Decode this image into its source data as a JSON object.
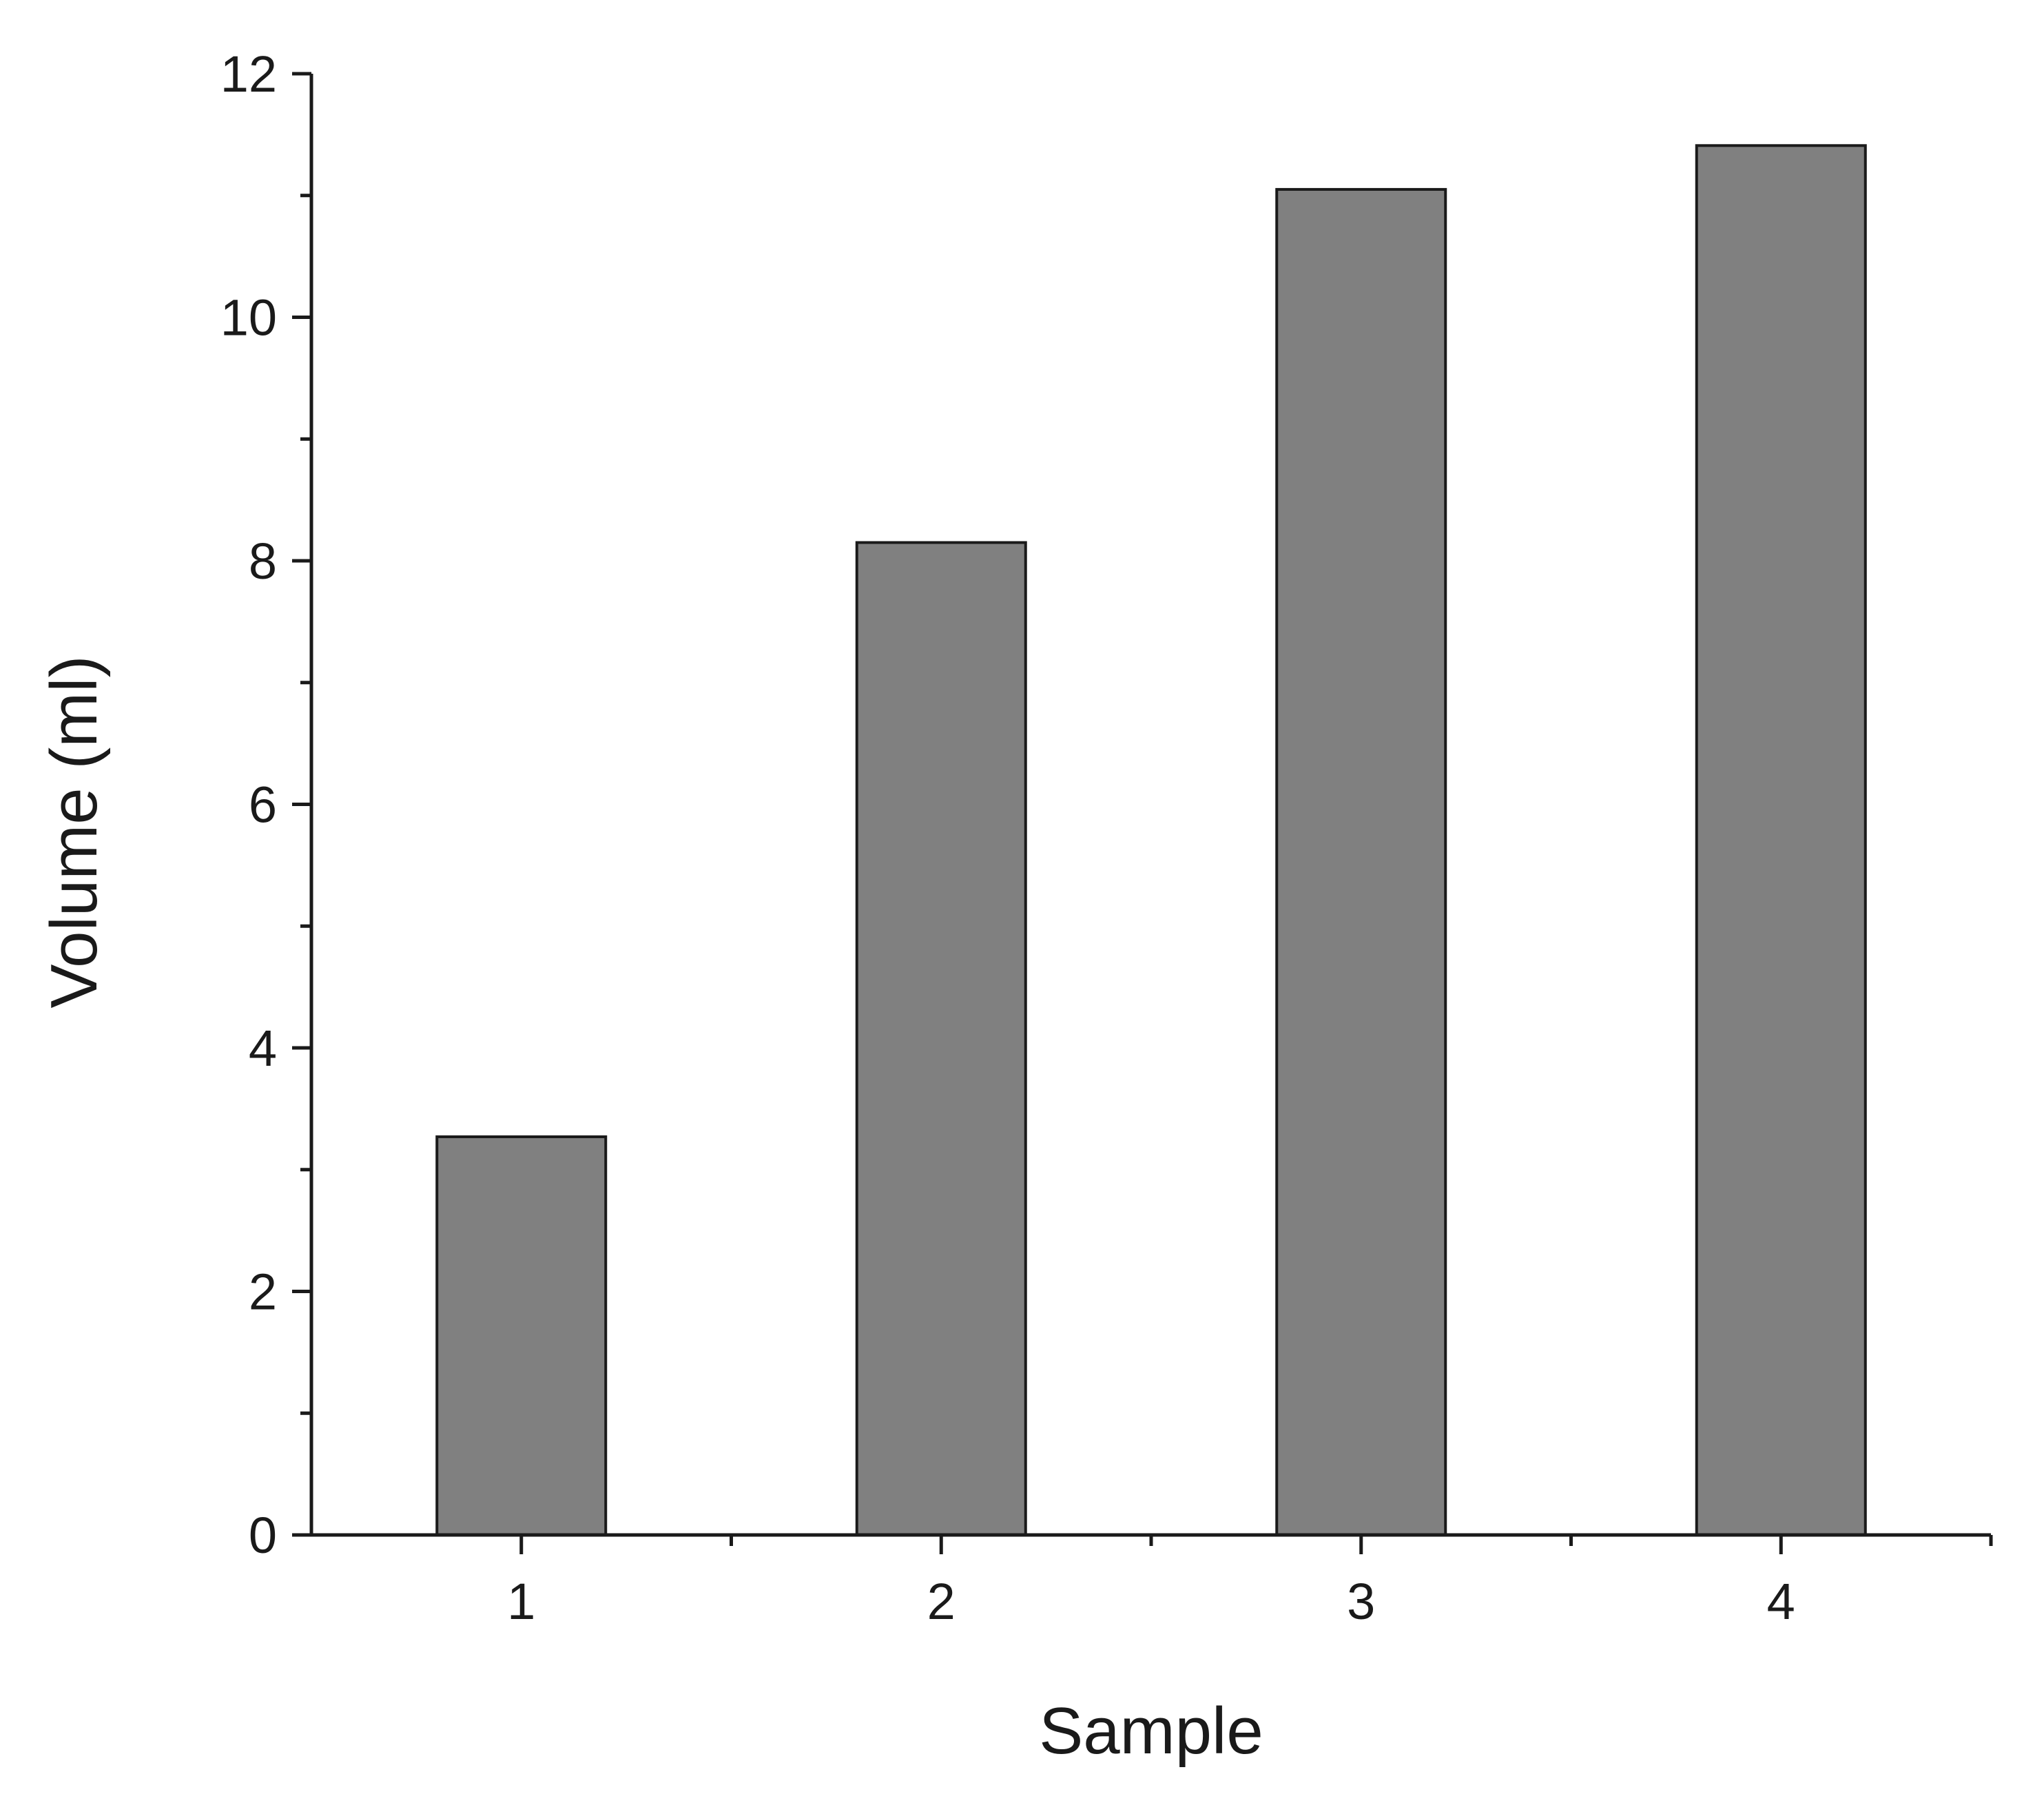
{
  "chart_data": {
    "type": "bar",
    "categories": [
      "1",
      "2",
      "3",
      "4"
    ],
    "values": [
      3.27,
      8.15,
      11.05,
      11.41
    ],
    "title": "",
    "xlabel": "Sample",
    "ylabel": "Volume (ml)",
    "ylim": [
      0,
      12
    ],
    "yticks": [
      "0",
      "2",
      "4",
      "6",
      "8",
      "10",
      "12"
    ],
    "grid": false,
    "bar_color": "#808080",
    "bar_edge_color": "#1a1a1a",
    "axis_color": "#1a1a1a"
  }
}
